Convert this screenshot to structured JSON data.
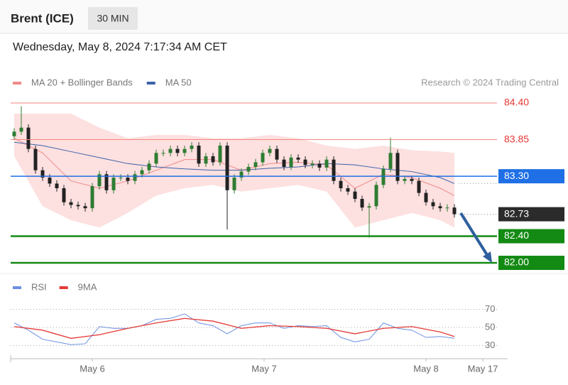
{
  "header": {
    "title": "Brent (ICE)",
    "timeframe": "30 MIN",
    "datetime": "Wednesday, May 8, 2024 7:17:34 AM CET"
  },
  "chart_data": [
    {
      "type": "candlestick",
      "annotation": "Research © 2024 Trading Central",
      "xlim": [
        -0.5,
        69.5
      ],
      "ylim": [
        81.9,
        84.5
      ],
      "up_color": "#2e7d32",
      "down_color": "#222222",
      "candles": {
        "open": [
          83.9,
          83.97,
          84.03,
          83.71,
          83.39,
          83.28,
          83.19,
          83.12,
          82.91,
          82.87,
          82.85,
          82.82,
          83.15,
          83.33,
          83.09,
          83.28,
          83.28,
          83.23,
          83.33,
          83.39,
          83.49,
          83.65,
          83.65,
          83.71,
          83.65,
          83.71,
          83.76,
          83.49,
          83.6,
          83.51,
          83.76,
          83.09,
          83.28,
          83.37,
          83.44,
          83.51,
          83.65,
          83.71,
          83.55,
          83.44,
          83.58,
          83.55,
          83.47,
          83.49,
          83.43,
          83.55,
          83.23,
          83.12,
          83.07,
          82.96,
          82.83,
          82.85,
          83.17,
          83.41,
          83.65,
          83.23,
          83.26,
          83.23,
          83.05,
          82.91,
          82.85,
          82.82,
          82.83
        ],
        "high": [
          84.02,
          84.35,
          84.08,
          83.76,
          83.44,
          83.33,
          83.24,
          83.17,
          82.96,
          82.92,
          82.9,
          83.2,
          83.38,
          83.38,
          83.33,
          83.33,
          83.33,
          83.38,
          83.44,
          83.54,
          83.7,
          83.7,
          83.76,
          83.76,
          83.76,
          83.81,
          83.81,
          83.65,
          83.65,
          83.81,
          83.81,
          83.33,
          83.42,
          83.49,
          83.56,
          83.7,
          83.76,
          83.76,
          83.6,
          83.63,
          83.63,
          83.6,
          83.54,
          83.54,
          83.6,
          83.6,
          83.28,
          83.17,
          83.12,
          83.01,
          82.9,
          83.22,
          83.46,
          83.88,
          83.7,
          83.31,
          83.31,
          83.28,
          83.1,
          82.96,
          82.9,
          82.88,
          82.88
        ],
        "low": [
          83.85,
          83.92,
          83.66,
          83.34,
          83.23,
          83.14,
          83.07,
          82.86,
          82.82,
          82.8,
          82.77,
          82.77,
          83.1,
          83.04,
          83.04,
          83.23,
          83.18,
          83.18,
          83.28,
          83.34,
          83.44,
          83.6,
          83.6,
          83.6,
          83.6,
          83.66,
          83.44,
          83.44,
          83.46,
          83.46,
          82.5,
          83.04,
          83.23,
          83.32,
          83.39,
          83.46,
          83.6,
          83.5,
          83.39,
          83.39,
          83.5,
          83.42,
          83.42,
          83.38,
          83.38,
          83.18,
          83.07,
          83.02,
          82.91,
          82.78,
          82.38,
          82.8,
          83.12,
          83.36,
          83.18,
          83.18,
          83.18,
          83.0,
          82.86,
          82.8,
          82.77,
          82.77,
          82.68
        ],
        "close": [
          83.97,
          84.03,
          83.71,
          83.39,
          83.28,
          83.19,
          83.12,
          82.91,
          82.87,
          82.85,
          82.82,
          83.15,
          83.33,
          83.09,
          83.28,
          83.28,
          83.23,
          83.33,
          83.39,
          83.49,
          83.65,
          83.65,
          83.71,
          83.65,
          83.71,
          83.76,
          83.49,
          83.6,
          83.51,
          83.76,
          83.09,
          83.28,
          83.37,
          83.44,
          83.51,
          83.65,
          83.71,
          83.55,
          83.44,
          83.58,
          83.55,
          83.47,
          83.49,
          83.43,
          83.55,
          83.23,
          83.12,
          83.07,
          82.96,
          82.83,
          82.85,
          83.17,
          83.41,
          83.65,
          83.23,
          83.26,
          83.23,
          83.05,
          82.91,
          82.85,
          82.82,
          82.83,
          82.73
        ]
      },
      "series": [
        {
          "name": "MA 20 + Bollinger Bands",
          "color": "#f08a8a",
          "band_color": "#fde0e0",
          "x": [
            0,
            4,
            8,
            12,
            16,
            20,
            24,
            28,
            32,
            36,
            40,
            44,
            48,
            52,
            56,
            60,
            62
          ],
          "values": [
            83.87,
            83.65,
            83.23,
            83.12,
            83.23,
            83.39,
            83.55,
            83.55,
            83.39,
            83.49,
            83.51,
            83.47,
            83.12,
            83.33,
            83.28,
            83.12,
            83.01
          ],
          "upper": [
            84.24,
            84.24,
            84.24,
            84.03,
            83.87,
            83.92,
            83.92,
            83.87,
            83.87,
            83.92,
            83.87,
            83.76,
            83.71,
            83.76,
            83.69,
            83.67,
            83.65
          ],
          "lower": [
            83.6,
            82.85,
            82.64,
            82.53,
            82.75,
            83.01,
            83.12,
            83.17,
            83.07,
            83.12,
            83.17,
            83.07,
            82.53,
            82.64,
            82.75,
            82.64,
            82.53
          ]
        },
        {
          "name": "MA 50",
          "color": "#3a62a8",
          "x": [
            0,
            4,
            8,
            12,
            16,
            20,
            24,
            28,
            32,
            36,
            40,
            44,
            48,
            52,
            56,
            60,
            62
          ],
          "values": [
            83.81,
            83.76,
            83.67,
            83.58,
            83.49,
            83.44,
            83.41,
            83.39,
            83.39,
            83.42,
            83.44,
            83.49,
            83.47,
            83.41,
            83.37,
            83.28,
            83.19
          ]
        }
      ],
      "levels": {
        "values": [
          84.4,
          83.85,
          83.3,
          82.73,
          82.4,
          82.0
        ],
        "value_labels": [
          "84.40",
          "83.85",
          "83.30",
          "82.73",
          "82.40",
          "82.00"
        ],
        "colors": [
          "#f2867f",
          "#f2867f",
          "#1f6fe6",
          "#2b2b2b",
          "#138a13",
          "#138a13"
        ],
        "styles": [
          "line",
          "line",
          "box",
          "current",
          "thick",
          "thick"
        ]
      }
    },
    {
      "type": "line",
      "xlim": [
        -0.5,
        69.5
      ],
      "ylim": [
        18,
        82
      ],
      "yticks": [
        30,
        50,
        70
      ],
      "grid": true,
      "xticks": [
        {
          "value": 11,
          "label": "May 6"
        },
        {
          "value": 35.2,
          "label": "May 7"
        },
        {
          "value": 58,
          "label": "May 8"
        },
        {
          "value": 66,
          "label": "May 17"
        }
      ],
      "series": [
        {
          "name": "RSI",
          "color": "#6b8fe0",
          "x": [
            0,
            2,
            4,
            6,
            8,
            10,
            12,
            14,
            16,
            18,
            20,
            22,
            24,
            26,
            28,
            30,
            32,
            34,
            36,
            38,
            40,
            42,
            44,
            46,
            48,
            50,
            52,
            54,
            56,
            58,
            60,
            62
          ],
          "values": [
            55,
            47,
            37,
            34,
            31,
            32,
            51,
            49,
            49,
            52,
            59,
            60,
            65,
            55,
            52,
            43,
            52,
            55,
            55,
            49,
            52,
            51,
            52,
            39,
            34,
            37,
            55,
            49,
            47,
            39,
            40,
            38
          ]
        },
        {
          "name": "9MA",
          "color": "#e53935",
          "x": [
            0,
            4,
            8,
            12,
            16,
            20,
            24,
            28,
            32,
            36,
            40,
            44,
            48,
            52,
            56,
            60,
            62
          ],
          "values": [
            51,
            47,
            38,
            42,
            49,
            55,
            60,
            57,
            49,
            52,
            51,
            49,
            43,
            49,
            51,
            45,
            40
          ]
        }
      ]
    }
  ]
}
